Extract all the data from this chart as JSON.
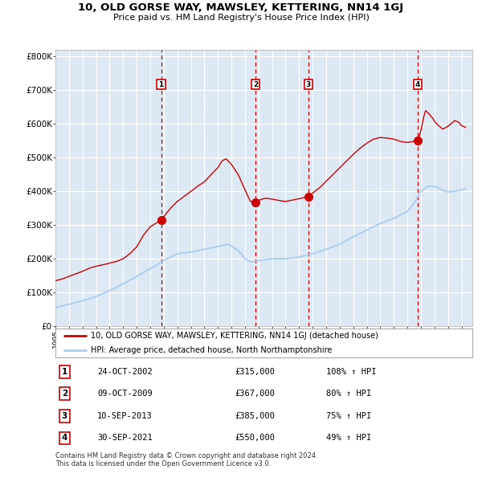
{
  "title": "10, OLD GORSE WAY, MAWSLEY, KETTERING, NN14 1GJ",
  "subtitle": "Price paid vs. HM Land Registry's House Price Index (HPI)",
  "ylim": [
    0,
    820000
  ],
  "xlim_start": 1995.0,
  "xlim_end": 2025.8,
  "yticks": [
    0,
    100000,
    200000,
    300000,
    400000,
    500000,
    600000,
    700000,
    800000
  ],
  "ytick_labels": [
    "£0",
    "£100K",
    "£200K",
    "£300K",
    "£400K",
    "£500K",
    "£600K",
    "£700K",
    "£800K"
  ],
  "xticks": [
    1995,
    1996,
    1997,
    1998,
    1999,
    2000,
    2001,
    2002,
    2003,
    2004,
    2005,
    2006,
    2007,
    2008,
    2009,
    2010,
    2011,
    2012,
    2013,
    2014,
    2015,
    2016,
    2017,
    2018,
    2019,
    2020,
    2021,
    2022,
    2023,
    2024,
    2025
  ],
  "background_color": "#dce9f5",
  "grid_color": "#ffffff",
  "hpi_line_color": "#aaccee",
  "price_line_color": "#cc0000",
  "sale_marker_color": "#cc0000",
  "dashed_line_color": "#cc0000",
  "transactions": [
    {
      "date": 2002.81,
      "price": 315000,
      "label": "1"
    },
    {
      "date": 2009.77,
      "price": 367000,
      "label": "2"
    },
    {
      "date": 2013.69,
      "price": 385000,
      "label": "3"
    },
    {
      "date": 2021.75,
      "price": 550000,
      "label": "4"
    }
  ],
  "table_rows": [
    {
      "num": "1",
      "date": "24-OCT-2002",
      "price": "£315,000",
      "info": "108% ↑ HPI"
    },
    {
      "num": "2",
      "date": "09-OCT-2009",
      "price": "£367,000",
      "info": "80% ↑ HPI"
    },
    {
      "num": "3",
      "date": "10-SEP-2013",
      "price": "£385,000",
      "info": "75% ↑ HPI"
    },
    {
      "num": "4",
      "date": "30-SEP-2021",
      "price": "£550,000",
      "info": "49% ↑ HPI"
    }
  ],
  "legend1_label": "10, OLD GORSE WAY, MAWSLEY, KETTERING, NN14 1GJ (detached house)",
  "legend2_label": "HPI: Average price, detached house, North Northamptonshire",
  "footnote": "Contains HM Land Registry data © Crown copyright and database right 2024.\nThis data is licensed under the Open Government Licence v3.0."
}
